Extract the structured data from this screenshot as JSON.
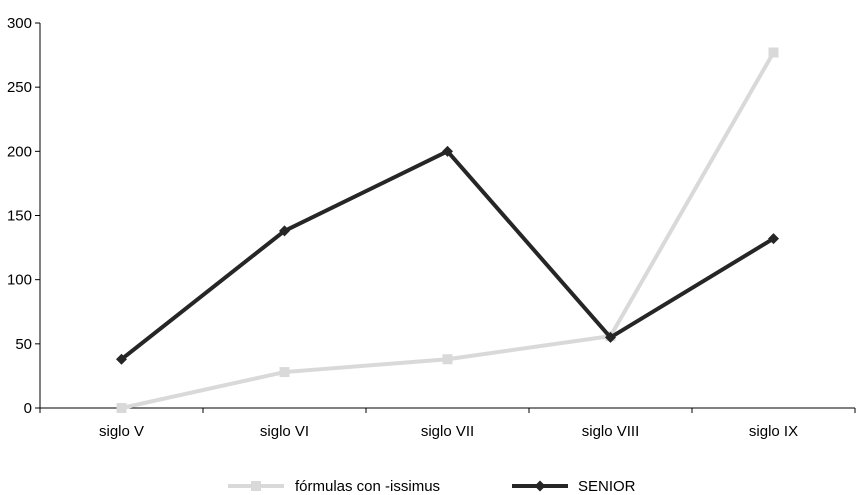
{
  "chart_data": {
    "type": "line",
    "categories": [
      "siglo V",
      "siglo VI",
      "siglo VII",
      "siglo VIII",
      "siglo IX"
    ],
    "series": [
      {
        "name": "fórmulas con -issimus",
        "values": [
          0,
          28,
          38,
          56,
          277
        ],
        "color": "#d9d9d9",
        "marker": "square"
      },
      {
        "name": "SENIOR",
        "values": [
          38,
          138,
          200,
          55,
          132
        ],
        "color": "#262626",
        "marker": "diamond"
      }
    ],
    "ylim": [
      0,
      300
    ],
    "yticks": [
      0,
      50,
      100,
      150,
      200,
      250,
      300
    ],
    "grid": false,
    "legend_position": "bottom"
  }
}
